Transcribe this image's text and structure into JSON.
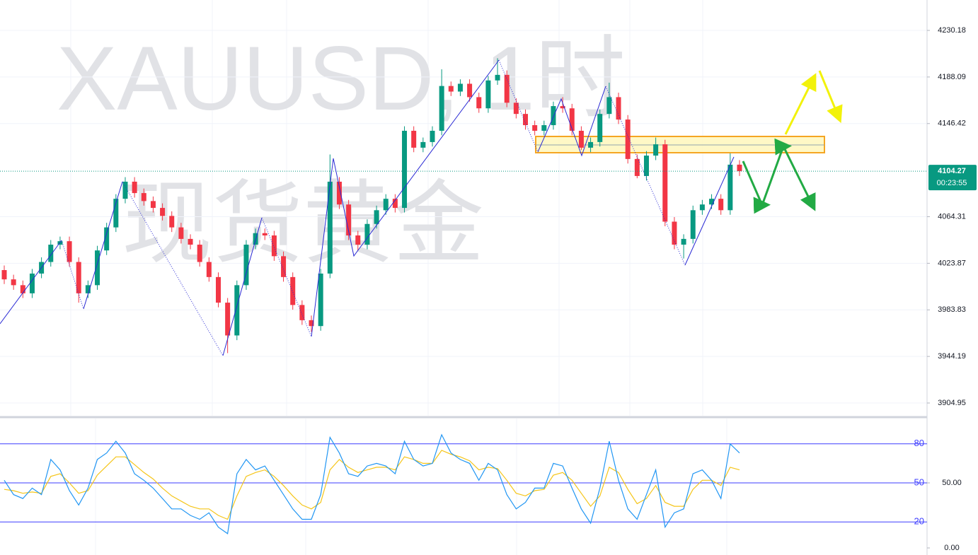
{
  "chart_data": [
    {
      "type": "candlestick",
      "title": "XAUUSD, 1时",
      "subtitle": "现货黄金",
      "open": [
        4018,
        4010,
        4005,
        3998,
        4015,
        4025,
        4040,
        4043,
        4025,
        3998,
        4005,
        4035,
        4055,
        4080,
        4095,
        4085,
        4078,
        4072,
        4065,
        4055,
        4045,
        4040,
        4025,
        4012,
        3990,
        3962,
        4005,
        4040,
        4050,
        4048,
        4030,
        4012,
        3988,
        3975,
        3970,
        4015,
        4095,
        4075,
        4048,
        4040,
        4058,
        4070,
        4080,
        4072,
        4140,
        4125,
        4130,
        4140,
        4180,
        4175,
        4182,
        4170,
        4160,
        4185,
        4190,
        4165,
        4155,
        4145,
        4140,
        4145,
        4162,
        4160,
        4140,
        4125,
        4130,
        4155,
        4170,
        4150,
        4115,
        4100,
        4118,
        4128,
        4060,
        4040,
        4045,
        4070,
        4075,
        4080,
        4070,
        4110
      ],
      "high": [
        4022,
        4014,
        4009,
        4019,
        4029,
        4044,
        4047,
        4047,
        4029,
        4009,
        4039,
        4059,
        4084,
        4099,
        4099,
        4089,
        4082,
        4076,
        4069,
        4059,
        4049,
        4044,
        4029,
        4016,
        3994,
        4009,
        4044,
        4054,
        4054,
        4052,
        4034,
        4016,
        3992,
        3979,
        4019,
        4119,
        4099,
        4079,
        4052,
        4062,
        4074,
        4084,
        4084,
        4144,
        4144,
        4134,
        4144,
        4195,
        4184,
        4186,
        4186,
        4174,
        4189,
        4205,
        4194,
        4169,
        4159,
        4149,
        4149,
        4166,
        4170,
        4164,
        4144,
        4134,
        4159,
        4183,
        4174,
        4154,
        4119,
        4122,
        4134,
        4132,
        4064,
        4049,
        4074,
        4079,
        4084,
        4084,
        4120,
        4114
      ],
      "low": [
        4006,
        4001,
        3994,
        3994,
        4011,
        4021,
        4036,
        4021,
        3990,
        3994,
        4001,
        4031,
        4051,
        4076,
        4081,
        4074,
        4068,
        4061,
        4051,
        4041,
        4036,
        4021,
        4008,
        3986,
        3947,
        3958,
        4001,
        4036,
        4044,
        4026,
        4008,
        3984,
        3971,
        3965,
        3966,
        4011,
        4071,
        4044,
        4035,
        4036,
        4054,
        4066,
        4068,
        4068,
        4121,
        4121,
        4126,
        4136,
        4171,
        4171,
        4166,
        4156,
        4156,
        4181,
        4161,
        4151,
        4141,
        4136,
        4136,
        4141,
        4156,
        4136,
        4123,
        4121,
        4126,
        4151,
        4146,
        4111,
        4098,
        4096,
        4114,
        4056,
        4036,
        4028,
        4041,
        4066,
        4071,
        4066,
        4066,
        4100
      ],
      "close": [
        4010,
        4005,
        3998,
        4015,
        4025,
        4040,
        4043,
        4025,
        3998,
        4005,
        4035,
        4055,
        4080,
        4095,
        4085,
        4078,
        4072,
        4065,
        4055,
        4045,
        4040,
        4025,
        4012,
        3990,
        3962,
        4005,
        4040,
        4050,
        4048,
        4030,
        4012,
        3988,
        3975,
        3970,
        4015,
        4095,
        4075,
        4048,
        4040,
        4058,
        4070,
        4080,
        4072,
        4140,
        4125,
        4130,
        4140,
        4180,
        4175,
        4182,
        4170,
        4160,
        4185,
        4190,
        4165,
        4155,
        4145,
        4140,
        4145,
        4162,
        4160,
        4140,
        4125,
        4130,
        4155,
        4170,
        4150,
        4115,
        4100,
        4118,
        4128,
        4060,
        4040,
        4045,
        4070,
        4075,
        4080,
        4070,
        4110,
        4104.27
      ],
      "up_color": "#089981",
      "down_color": "#f23645",
      "ylim": [
        3894.3,
        4257.9
      ],
      "log_scale": true,
      "yticks": [
        4230.18,
        4188.09,
        4146.42,
        4064.31,
        4023.87,
        3983.83,
        3944.19,
        3904.95
      ],
      "grid": true,
      "last_price": 4104.27,
      "countdown": "00:23:55"
    },
    {
      "type": "line",
      "series": [
        {
          "color": "#2196f3",
          "values": [
            52,
            41,
            38,
            46,
            41,
            68,
            60,
            44,
            33,
            46,
            68,
            73,
            82,
            73,
            57,
            52,
            46,
            38,
            30,
            30,
            25,
            22,
            27,
            16,
            11,
            57,
            68,
            60,
            63,
            52,
            41,
            30,
            22,
            22,
            41,
            85,
            73,
            57,
            55,
            63,
            65,
            63,
            57,
            82,
            68,
            63,
            65,
            87,
            73,
            68,
            65,
            52,
            65,
            60,
            41,
            30,
            35,
            46,
            46,
            65,
            63,
            46,
            30,
            19,
            46,
            82,
            52,
            30,
            22,
            41,
            60,
            16,
            27,
            30,
            57,
            60,
            52,
            38,
            80,
            73
          ]
        },
        {
          "color": "#f5c518",
          "values": [
            45,
            44,
            42,
            43,
            42,
            55,
            57,
            50,
            42,
            44,
            56,
            63,
            70,
            70,
            64,
            58,
            53,
            46,
            40,
            36,
            32,
            30,
            30,
            25,
            22,
            40,
            55,
            58,
            60,
            55,
            48,
            40,
            33,
            30,
            35,
            60,
            68,
            62,
            58,
            60,
            62,
            62,
            60,
            70,
            68,
            65,
            65,
            75,
            72,
            70,
            67,
            60,
            62,
            61,
            52,
            42,
            40,
            44,
            45,
            56,
            58,
            52,
            42,
            32,
            40,
            62,
            58,
            45,
            34,
            38,
            48,
            35,
            32,
            32,
            45,
            52,
            52,
            48,
            62,
            60
          ]
        }
      ],
      "ylim": [
        0,
        100
      ],
      "levels": [
        80,
        50,
        20
      ],
      "level_color": "#3d3dff",
      "yticks": [
        {
          "value": 50,
          "label": "50.00"
        },
        {
          "value": 0,
          "label": "0.00"
        }
      ]
    }
  ]
}
